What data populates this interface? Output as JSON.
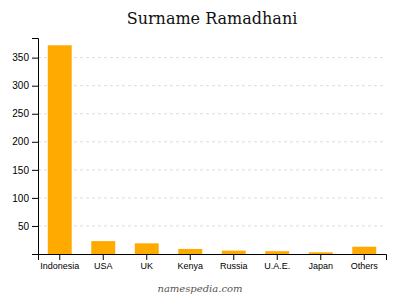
{
  "chart_data": {
    "type": "bar",
    "title": "Surname Ramadhani",
    "categories": [
      "Indonesia",
      "USA",
      "UK",
      "Kenya",
      "Russia",
      "U.A.E.",
      "Japan",
      "Others"
    ],
    "values": [
      372,
      23,
      19,
      9,
      6,
      5,
      3,
      13
    ],
    "color": "#FFAA00",
    "ylim": [
      0,
      385
    ],
    "yticks": [
      50,
      100,
      150,
      200,
      250,
      300,
      350
    ],
    "grid": true,
    "annotations": [
      "namespedia.com"
    ]
  }
}
